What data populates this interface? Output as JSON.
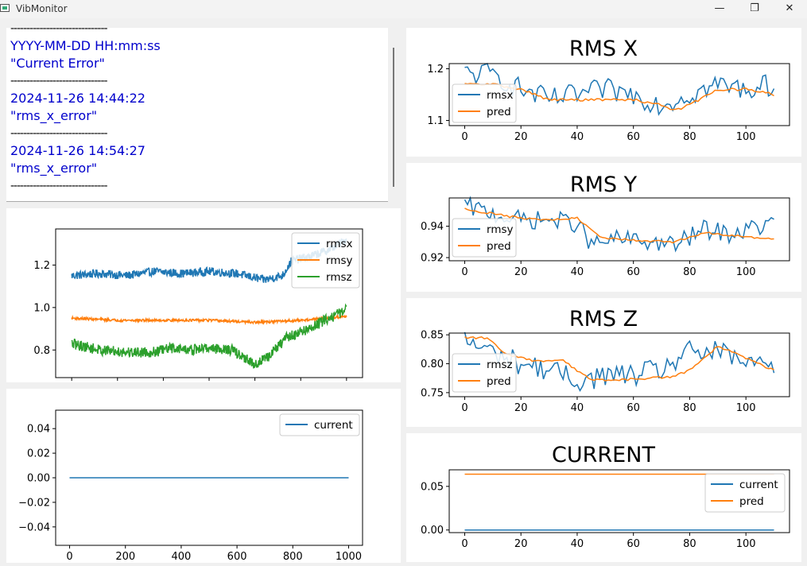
{
  "window": {
    "title": "VibMonitor",
    "min": "—",
    "max": "❐",
    "close": "✕"
  },
  "log": {
    "lines": [
      {
        "text": "------------------------------",
        "sep": true
      },
      {
        "text": "YYYY-MM-DD HH:mm:ss",
        "sep": false
      },
      {
        "text": "\"Current Error\"",
        "sep": false
      },
      {
        "text": "------------------------------",
        "sep": true
      },
      {
        "text": "2024-11-26 14:44:22",
        "sep": false
      },
      {
        "text": "\"rms_x_error\"",
        "sep": false
      },
      {
        "text": "------------------------------",
        "sep": true
      },
      {
        "text": "2024-11-26 14:54:27",
        "sep": false
      },
      {
        "text": "\"rms_x_error\"",
        "sep": false
      },
      {
        "text": "------------------------------",
        "sep": true
      }
    ]
  },
  "chart_data": [
    {
      "id": "overview",
      "type": "line",
      "title": "",
      "xlim": [
        -35,
        635
      ],
      "ylim": [
        0.67,
        1.37
      ],
      "xticks": [
        0,
        100,
        200,
        300,
        400,
        500,
        600
      ],
      "yticks": [
        0.8,
        1.0,
        1.2
      ],
      "ytick_labels": [
        "0.8",
        "1.0",
        "1.2"
      ],
      "legend": "top-right",
      "series": [
        {
          "name": "rmsx",
          "color": "#1f77b4",
          "x_end": 600,
          "key": [
            [
              0,
              1.15
            ],
            [
              60,
              1.16
            ],
            [
              120,
              1.15
            ],
            [
              180,
              1.17
            ],
            [
              240,
              1.16
            ],
            [
              300,
              1.17
            ],
            [
              360,
              1.16
            ],
            [
              420,
              1.13
            ],
            [
              460,
              1.15
            ],
            [
              480,
              1.22
            ],
            [
              520,
              1.24
            ],
            [
              560,
              1.27
            ],
            [
              600,
              1.32
            ]
          ],
          "noise": 0.02
        },
        {
          "name": "rmsy",
          "color": "#ff7f0e",
          "x_end": 600,
          "key": [
            [
              0,
              0.95
            ],
            [
              100,
              0.94
            ],
            [
              200,
              0.94
            ],
            [
              300,
              0.94
            ],
            [
              400,
              0.93
            ],
            [
              500,
              0.94
            ],
            [
              560,
              0.95
            ],
            [
              600,
              0.96
            ]
          ],
          "noise": 0.006
        },
        {
          "name": "rmsz",
          "color": "#2ca02c",
          "x_end": 600,
          "key": [
            [
              0,
              0.83
            ],
            [
              60,
              0.8
            ],
            [
              120,
              0.79
            ],
            [
              180,
              0.79
            ],
            [
              220,
              0.81
            ],
            [
              260,
              0.8
            ],
            [
              300,
              0.81
            ],
            [
              350,
              0.8
            ],
            [
              400,
              0.73
            ],
            [
              430,
              0.77
            ],
            [
              470,
              0.86
            ],
            [
              520,
              0.9
            ],
            [
              560,
              0.95
            ],
            [
              600,
              0.99
            ]
          ],
          "noise": 0.025
        }
      ]
    },
    {
      "id": "current-overview",
      "type": "line",
      "title": "",
      "xlim": [
        -50,
        1050
      ],
      "ylim": [
        -0.055,
        0.055
      ],
      "xticks": [
        0,
        200,
        400,
        600,
        800,
        1000
      ],
      "yticks": [
        0.04,
        0.02,
        0.0,
        -0.02,
        -0.04
      ],
      "ytick_labels": [
        "0.04",
        "0.02",
        "0.00",
        "−0.02",
        "−0.04"
      ],
      "legend": "top-right",
      "series": [
        {
          "name": "current",
          "color": "#1f77b4",
          "x_end": 1000,
          "key": [
            [
              0,
              0.0
            ],
            [
              1000,
              0.0
            ]
          ],
          "noise": 0
        }
      ]
    },
    {
      "id": "rms-x",
      "type": "line",
      "title": "RMS X",
      "xlim": [
        -5.5,
        115.5
      ],
      "ylim": [
        1.09,
        1.21
      ],
      "xticks": [
        0,
        20,
        40,
        60,
        80,
        100
      ],
      "yticks": [
        1.1,
        1.2
      ],
      "ytick_labels": [
        "1.1",
        "1.2"
      ],
      "legend": "left",
      "series": [
        {
          "name": "rmsx",
          "color": "#1f77b4",
          "x_end": 110,
          "key": [
            [
              0,
              1.19
            ],
            [
              10,
              1.19
            ],
            [
              20,
              1.16
            ],
            [
              30,
              1.14
            ],
            [
              40,
              1.15
            ],
            [
              50,
              1.16
            ],
            [
              60,
              1.15
            ],
            [
              70,
              1.13
            ],
            [
              80,
              1.15
            ],
            [
              90,
              1.17
            ],
            [
              100,
              1.16
            ],
            [
              110,
              1.17
            ]
          ],
          "noise": 0.022
        },
        {
          "name": "pred",
          "color": "#ff7f0e",
          "x_end": 110,
          "key": [
            [
              0,
              1.17
            ],
            [
              10,
              1.17
            ],
            [
              20,
              1.16
            ],
            [
              30,
              1.14
            ],
            [
              40,
              1.14
            ],
            [
              50,
              1.14
            ],
            [
              60,
              1.14
            ],
            [
              70,
              1.13
            ],
            [
              75,
              1.12
            ],
            [
              80,
              1.13
            ],
            [
              90,
              1.16
            ],
            [
              100,
              1.16
            ],
            [
              110,
              1.15
            ]
          ],
          "noise": 0.0025
        }
      ]
    },
    {
      "id": "rms-y",
      "type": "line",
      "title": "RMS Y",
      "xlim": [
        -5.5,
        115.5
      ],
      "ylim": [
        0.918,
        0.958
      ],
      "xticks": [
        0,
        20,
        40,
        60,
        80,
        100
      ],
      "yticks": [
        0.92,
        0.94
      ],
      "ytick_labels": [
        "0.92",
        "0.94"
      ],
      "legend": "left",
      "series": [
        {
          "name": "rmsy",
          "color": "#1f77b4",
          "x_end": 110,
          "key": [
            [
              0,
              0.953
            ],
            [
              10,
              0.948
            ],
            [
              20,
              0.944
            ],
            [
              30,
              0.944
            ],
            [
              40,
              0.942
            ],
            [
              45,
              0.928
            ],
            [
              55,
              0.932
            ],
            [
              65,
              0.93
            ],
            [
              75,
              0.928
            ],
            [
              85,
              0.938
            ],
            [
              95,
              0.935
            ],
            [
              110,
              0.942
            ]
          ],
          "noise": 0.006
        },
        {
          "name": "pred",
          "color": "#ff7f0e",
          "x_end": 110,
          "key": [
            [
              0,
              0.951
            ],
            [
              10,
              0.948
            ],
            [
              20,
              0.945
            ],
            [
              30,
              0.944
            ],
            [
              40,
              0.945
            ],
            [
              48,
              0.933
            ],
            [
              60,
              0.931
            ],
            [
              75,
              0.93
            ],
            [
              85,
              0.936
            ],
            [
              95,
              0.934
            ],
            [
              110,
              0.932
            ]
          ],
          "noise": 0.0007
        }
      ]
    },
    {
      "id": "rms-z",
      "type": "line",
      "title": "RMS Z",
      "xlim": [
        -5.5,
        115.5
      ],
      "ylim": [
        0.743,
        0.853
      ],
      "xticks": [
        0,
        20,
        40,
        60,
        80,
        100
      ],
      "yticks": [
        0.75,
        0.8,
        0.85
      ],
      "ytick_labels": [
        "0.75",
        "0.80",
        "0.85"
      ],
      "legend": "left",
      "series": [
        {
          "name": "rmsz",
          "color": "#1f77b4",
          "x_end": 110,
          "key": [
            [
              0,
              0.84
            ],
            [
              10,
              0.82
            ],
            [
              20,
              0.8
            ],
            [
              30,
              0.79
            ],
            [
              40,
              0.77
            ],
            [
              50,
              0.78
            ],
            [
              60,
              0.78
            ],
            [
              70,
              0.79
            ],
            [
              80,
              0.82
            ],
            [
              90,
              0.82
            ],
            [
              100,
              0.8
            ],
            [
              110,
              0.8
            ]
          ],
          "noise": 0.02
        },
        {
          "name": "pred",
          "color": "#ff7f0e",
          "x_end": 110,
          "key": [
            [
              0,
              0.845
            ],
            [
              8,
              0.845
            ],
            [
              15,
              0.815
            ],
            [
              25,
              0.805
            ],
            [
              35,
              0.805
            ],
            [
              45,
              0.772
            ],
            [
              55,
              0.772
            ],
            [
              65,
              0.775
            ],
            [
              75,
              0.778
            ],
            [
              80,
              0.79
            ],
            [
              90,
              0.83
            ],
            [
              100,
              0.81
            ],
            [
              110,
              0.788
            ]
          ],
          "noise": 0.002
        }
      ]
    },
    {
      "id": "current",
      "type": "line",
      "title": "CURRENT",
      "xlim": [
        -5.5,
        115.5
      ],
      "ylim": [
        -0.003,
        0.069
      ],
      "xticks": [
        0,
        20,
        40,
        60,
        80,
        100
      ],
      "yticks": [
        0.0,
        0.05
      ],
      "ytick_labels": [
        "0.00",
        "0.05"
      ],
      "legend": "right",
      "series": [
        {
          "name": "current",
          "color": "#1f77b4",
          "x_end": 110,
          "key": [
            [
              0,
              0.0
            ],
            [
              110,
              0.0
            ]
          ],
          "noise": 0
        },
        {
          "name": "pred",
          "color": "#ff7f0e",
          "x_end": 110,
          "key": [
            [
              0,
              0.064
            ],
            [
              110,
              0.064
            ]
          ],
          "noise": 0
        }
      ]
    }
  ]
}
